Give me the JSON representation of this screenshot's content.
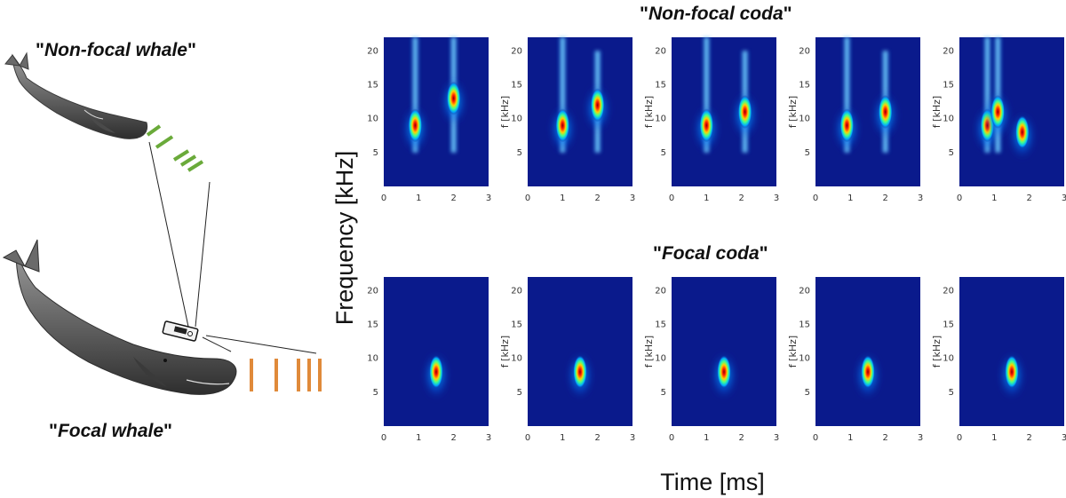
{
  "labels": {
    "non_focal_whale_prefix": "\"",
    "non_focal_whale": "Non-focal whale",
    "non_focal_whale_suffix": "\"",
    "focal_whale_prefix": "\"",
    "focal_whale": "Focal whale",
    "focal_whale_suffix": "\"",
    "non_focal_coda_prefix": "\"",
    "non_focal_coda": "Non-focal coda",
    "non_focal_coda_suffix": "\"",
    "focal_coda_prefix": "\"",
    "focal_coda": "Focal coda",
    "focal_coda_suffix": "\""
  },
  "colors": {
    "non_focal_marks": "#6aaa3a",
    "focal_marks": "#e08a3a",
    "spectrogram_bg": "#0a1a8c"
  },
  "chart_data": {
    "type": "heatmap",
    "xlabel": "Time [ms]",
    "ylabel": "Frequency [kHz]",
    "panel_ylabel": "f [kHz]",
    "xlim": [
      0,
      3
    ],
    "ylim": [
      0,
      22
    ],
    "x_ticks": [
      "0",
      "1",
      "2",
      "3"
    ],
    "y_ticks": [
      "5",
      "10",
      "15",
      "20"
    ],
    "rows": [
      {
        "name": "Non-focal coda",
        "panels": [
          {
            "pulses": [
              {
                "t": 0.9,
                "fmin": 5,
                "fmax": 22,
                "peak_f": 9
              },
              {
                "t": 2.0,
                "fmin": 5,
                "fmax": 22,
                "peak_f": 13
              }
            ]
          },
          {
            "pulses": [
              {
                "t": 1.0,
                "fmin": 5,
                "fmax": 22,
                "peak_f": 9
              },
              {
                "t": 2.0,
                "fmin": 5,
                "fmax": 20,
                "peak_f": 12
              }
            ]
          },
          {
            "pulses": [
              {
                "t": 1.0,
                "fmin": 5,
                "fmax": 22,
                "peak_f": 9
              },
              {
                "t": 2.1,
                "fmin": 5,
                "fmax": 20,
                "peak_f": 11
              }
            ]
          },
          {
            "pulses": [
              {
                "t": 0.9,
                "fmin": 5,
                "fmax": 22,
                "peak_f": 9
              },
              {
                "t": 2.0,
                "fmin": 5,
                "fmax": 20,
                "peak_f": 11
              }
            ]
          },
          {
            "pulses": [
              {
                "t": 0.8,
                "fmin": 5,
                "fmax": 22,
                "peak_f": 9
              },
              {
                "t": 1.1,
                "fmin": 5,
                "fmax": 22,
                "peak_f": 11
              },
              {
                "t": 1.8,
                "fmin": 5,
                "fmax": 12,
                "peak_f": 8
              }
            ]
          }
        ]
      },
      {
        "name": "Focal coda",
        "panels": [
          {
            "pulses": [
              {
                "t": 1.5,
                "fmin": 5,
                "fmax": 12,
                "peak_f": 8
              }
            ]
          },
          {
            "pulses": [
              {
                "t": 1.5,
                "fmin": 5,
                "fmax": 12,
                "peak_f": 8
              }
            ]
          },
          {
            "pulses": [
              {
                "t": 1.5,
                "fmin": 5,
                "fmax": 12,
                "peak_f": 8
              }
            ]
          },
          {
            "pulses": [
              {
                "t": 1.5,
                "fmin": 5,
                "fmax": 12,
                "peak_f": 8
              }
            ]
          },
          {
            "pulses": [
              {
                "t": 1.5,
                "fmin": 5,
                "fmax": 12,
                "peak_f": 8
              }
            ]
          }
        ]
      }
    ]
  }
}
